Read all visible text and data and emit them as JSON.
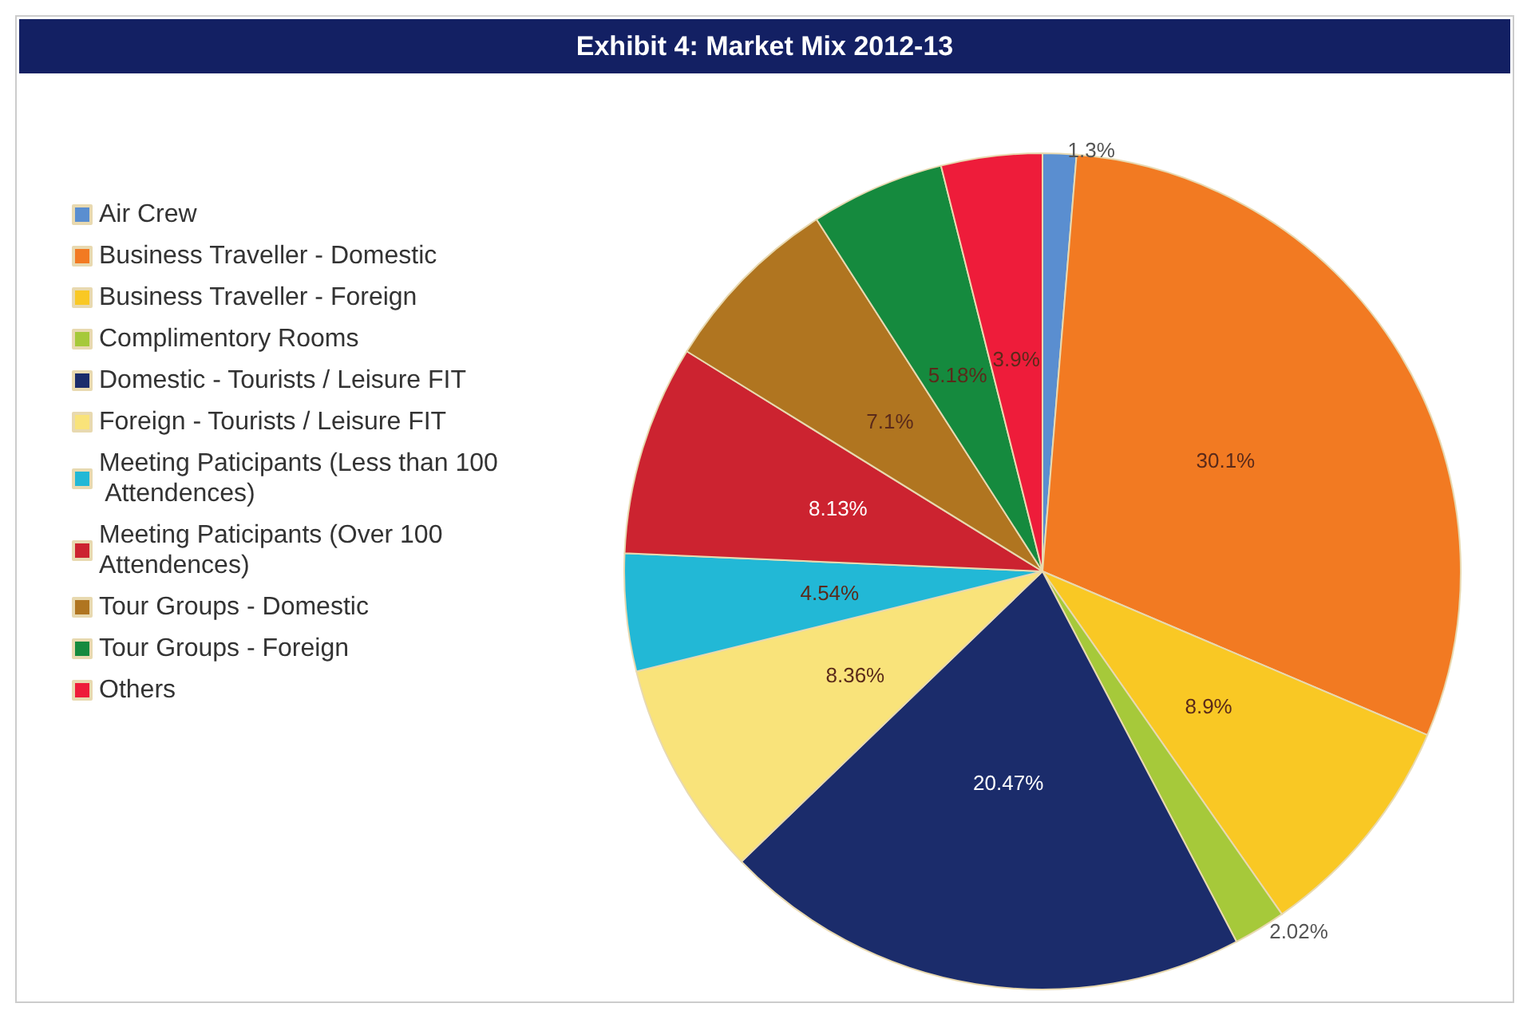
{
  "chart_data": {
    "type": "pie",
    "title": "Exhibit 4: Market Mix 2012-13",
    "categories": [
      "Air Crew",
      "Business Traveller - Domestic",
      "Business Traveller - Foreign",
      "Complimentory Rooms",
      "Domestic - Tourists / Leisure FIT",
      "Foreign - Tourists / Leisure FIT",
      "Meeting Paticipants (Less than 100 Attendences)",
      "Meeting Paticipants (Over 100 Attendences)",
      "Tour Groups - Domestic",
      "Tour Groups - Foreign",
      "Others"
    ],
    "values": [
      1.3,
      30.1,
      8.9,
      2.02,
      20.47,
      8.36,
      4.54,
      8.13,
      7.1,
      5.18,
      3.9
    ],
    "value_labels": [
      "1.3%",
      "30.1%",
      "8.9%",
      "2.02%",
      "20.47%",
      "8.36%",
      "4.54%",
      "8.13%",
      "7.1%",
      "5.18%",
      "3.9%"
    ],
    "colors": [
      "#5a8ed0",
      "#f27a22",
      "#f9c824",
      "#a6c93a",
      "#1b2c6b",
      "#f9e37a",
      "#22b8d6",
      "#cc2330",
      "#b07520",
      "#158a3e",
      "#ee1c3a"
    ],
    "legend": "left"
  }
}
